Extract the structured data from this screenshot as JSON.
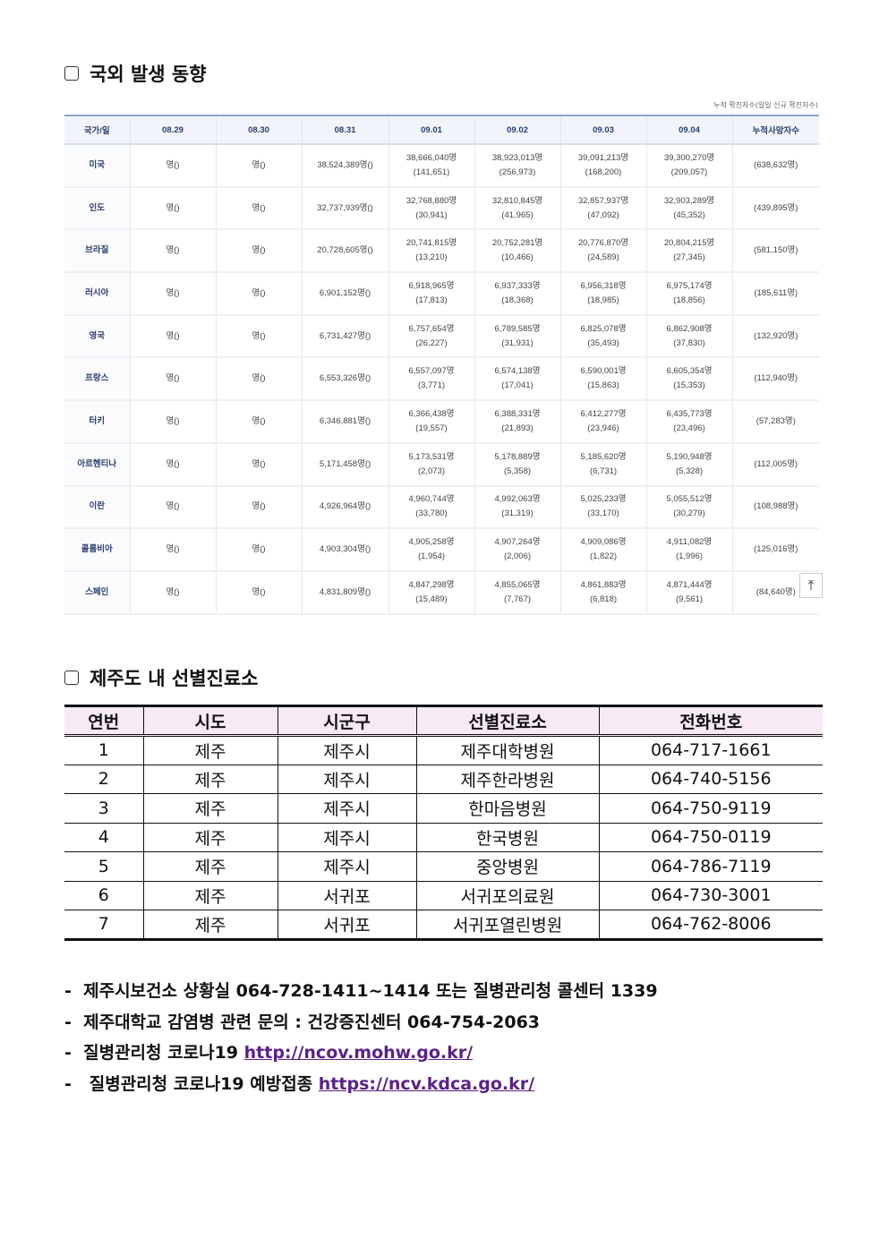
{
  "section1": {
    "title": "국외 발생 동향",
    "note": "누적 확진자수(일일 신규 확진자수)",
    "headers": [
      "국가/일",
      "08.29",
      "08.30",
      "08.31",
      "09.01",
      "09.02",
      "09.03",
      "09.04",
      "누적사망자수"
    ],
    "rows": [
      [
        "미국",
        "명()",
        "명()",
        "38,524,389명()",
        "38,666,040명\n(141,651)",
        "38,923,013명\n(256,973)",
        "39,091,213명\n(168,200)",
        "39,300,270명\n(209,057)",
        "(638,632명)"
      ],
      [
        "인도",
        "명()",
        "명()",
        "32,737,939명()",
        "32,768,880명\n(30,941)",
        "32,810,845명\n(41,965)",
        "32,857,937명\n(47,092)",
        "32,903,289명\n(45,352)",
        "(439,895명)"
      ],
      [
        "브라질",
        "명()",
        "명()",
        "20,728,605명()",
        "20,741,815명\n(13,210)",
        "20,752,281명\n(10,466)",
        "20,776,870명\n(24,589)",
        "20,804,215명\n(27,345)",
        "(581,150명)"
      ],
      [
        "러시아",
        "명()",
        "명()",
        "6,901,152명()",
        "6,918,965명\n(17,813)",
        "6,937,333명\n(18,368)",
        "6,956,318명\n(18,985)",
        "6,975,174명\n(18,856)",
        "(185,611명)"
      ],
      [
        "영국",
        "명()",
        "명()",
        "6,731,427명()",
        "6,757,654명\n(26,227)",
        "6,789,585명\n(31,931)",
        "6,825,078명\n(35,493)",
        "6,862,908명\n(37,830)",
        "(132,920명)"
      ],
      [
        "프랑스",
        "명()",
        "명()",
        "6,553,326명()",
        "6,557,097명\n(3,771)",
        "6,574,138명\n(17,041)",
        "6,590,001명\n(15,863)",
        "6,605,354명\n(15,353)",
        "(112,940명)"
      ],
      [
        "터키",
        "명()",
        "명()",
        "6,346,881명()",
        "6,366,438명\n(19,557)",
        "6,388,331명\n(21,893)",
        "6,412,277명\n(23,946)",
        "6,435,773명\n(23,496)",
        "(57,283명)"
      ],
      [
        "아르헨티나",
        "명()",
        "명()",
        "5,171,458명()",
        "5,173,531명\n(2,073)",
        "5,178,889명\n(5,358)",
        "5,185,620명\n(6,731)",
        "5,190,948명\n(5,328)",
        "(112,005명)"
      ],
      [
        "이란",
        "명()",
        "명()",
        "4,926,964명()",
        "4,960,744명\n(33,780)",
        "4,992,063명\n(31,319)",
        "5,025,233명\n(33,170)",
        "5,055,512명\n(30,279)",
        "(108,988명)"
      ],
      [
        "콜롬비아",
        "명()",
        "명()",
        "4,903,304명()",
        "4,905,258명\n(1,954)",
        "4,907,264명\n(2,006)",
        "4,909,086명\n(1,822)",
        "4,911,082명\n(1,996)",
        "(125,016명)"
      ],
      [
        "스페인",
        "명()",
        "명()",
        "4,831,809명()",
        "4,847,298명\n(15,489)",
        "4,855,065명\n(7,767)",
        "4,861,883명\n(6,818)",
        "4,871,444명\n(9,561)",
        "(84,640명)"
      ]
    ],
    "top_button": "⤒"
  },
  "section2": {
    "title": "제주도 내 선별진료소",
    "headers": [
      "연번",
      "시도",
      "시군구",
      "선별진료소",
      "전화번호"
    ],
    "rows": [
      [
        "1",
        "제주",
        "제주시",
        "제주대학병원",
        "064-717-1661"
      ],
      [
        "2",
        "제주",
        "제주시",
        "제주한라병원",
        "064-740-5156"
      ],
      [
        "3",
        "제주",
        "제주시",
        "한마음병원",
        "064-750-9119"
      ],
      [
        "4",
        "제주",
        "제주시",
        "한국병원",
        "064-750-0119"
      ],
      [
        "5",
        "제주",
        "제주시",
        "중앙병원",
        "064-786-7119"
      ],
      [
        "6",
        "제주",
        "서귀포",
        "서귀포의료원",
        "064-730-3001"
      ],
      [
        "7",
        "제주",
        "서귀포",
        "서귀포열린병원",
        "064-762-8006"
      ]
    ]
  },
  "notes": [
    {
      "text": "-  제주시보건소 상황실 064-728-1411~1414 또는 질병관리청 콜센터 1339",
      "link": ""
    },
    {
      "text": "-  제주대학교 감염병 관련 문의 : 건강증진센터 064-754-2063",
      "link": ""
    },
    {
      "text": "-  질병관리청 코로나19 ",
      "link": "http://ncov.mohw.go.kr/"
    },
    {
      "text": "-   질병관리청 코로나19 예방접종 ",
      "link": "https://ncv.kdca.go.kr/"
    }
  ],
  "colors": {
    "link": "#5b2188",
    "header2_bg": "#f8eaf4",
    "header1_text": "#2b3f6e"
  }
}
